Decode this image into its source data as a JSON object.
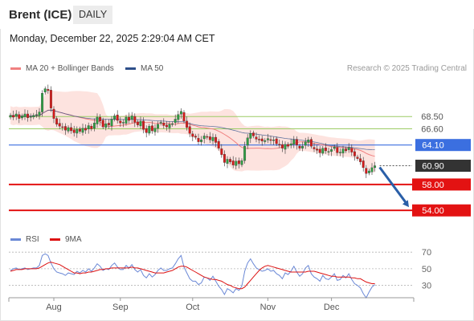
{
  "header": {
    "title": "Brent (ICE)",
    "timeframe": "DAILY",
    "timestamp": "Monday, December 22, 2025 2:29:04 AM CET"
  },
  "legend": {
    "ma20_label": "MA 20 + Bollinger Bands",
    "ma50_label": "MA 50",
    "rsi_label": "RSI",
    "nine_ma_label": "9MA",
    "ma20_color": "#f08080",
    "ma50_color": "#2e4f8a",
    "rsi_color": "#6a88d6",
    "nine_ma_color": "#dd1111"
  },
  "credit": "Research © 2025 Trading Central",
  "chart_data": [
    {
      "type": "candlestick",
      "months": [
        "Aug",
        "Sep",
        "Oct",
        "Nov",
        "Dec"
      ],
      "ylim": [
        50.8,
        74.6
      ],
      "levels": [
        {
          "label": "68.50",
          "value": 68.5,
          "kind": "target",
          "color": "#9ccc65"
        },
        {
          "label": "66.60",
          "value": 66.6,
          "kind": "target",
          "color": "#9ccc65"
        },
        {
          "label": "64.10",
          "value": 64.1,
          "kind": "pivot",
          "color": "#3b6fe0"
        },
        {
          "label": "60.90",
          "value": 60.9,
          "kind": "last",
          "color": "#333333"
        },
        {
          "label": "58.00",
          "value": 58.0,
          "kind": "support",
          "color": "#e31212"
        },
        {
          "label": "54.00",
          "value": 54.0,
          "kind": "support",
          "color": "#e31212"
        }
      ],
      "close": [
        68.7,
        68.4,
        68.9,
        68.2,
        68.6,
        68.9,
        68.3,
        68.5,
        68.7,
        68.8,
        69.2,
        72.1,
        72.8,
        72.5,
        69.8,
        68.2,
        67.3,
        67.0,
        66.9,
        66.4,
        66.8,
        66.3,
        66.0,
        66.5,
        66.2,
        66.7,
        66.4,
        67.1,
        66.6,
        67.5,
        68.4,
        67.8,
        66.9,
        67.4,
        67.2,
        68.1,
        68.6,
        67.9,
        67.5,
        67.6,
        68.4,
        67.9,
        68.6,
        67.6,
        67.2,
        67.8,
        66.5,
        66.0,
        67.0,
        66.3,
        66.7,
        67.3,
        67.6,
        67.1,
        66.9,
        67.3,
        67.4,
        68.1,
        68.8,
        69.3,
        67.8,
        66.8,
        65.9,
        65.4,
        65.3,
        64.6,
        64.9,
        65.5,
        65.3,
        64.9,
        65.3,
        64.5,
        63.6,
        62.6,
        61.4,
        61.9,
        61.5,
        61.0,
        61.6,
        61.2,
        61.7,
        63.9,
        65.2,
        65.9,
        65.5,
        65.0,
        64.9,
        64.7,
        64.8,
        65.1,
        64.8,
        64.9,
        64.3,
        64.1,
        63.6,
        64.2,
        63.9,
        64.3,
        64.9,
        64.1,
        63.6,
        63.9,
        64.6,
        64.9,
        63.9,
        63.5,
        63.3,
        62.9,
        63.6,
        63.2,
        63.1,
        63.4,
        63.8,
        62.9,
        63.0,
        63.5,
        63.2,
        63.7,
        63.0,
        62.4,
        62.0,
        61.5,
        60.6,
        59.7,
        60.1,
        60.6,
        60.9
      ],
      "rsi": [
        48,
        50,
        51,
        49,
        50,
        51,
        49,
        50,
        51,
        51,
        54,
        66,
        68,
        66,
        57,
        50,
        46,
        45,
        44,
        42,
        45,
        44,
        43,
        47,
        45,
        48,
        46,
        50,
        47,
        51,
        56,
        53,
        48,
        50,
        49,
        54,
        57,
        52,
        49,
        49,
        54,
        51,
        55,
        49,
        46,
        49,
        42,
        39,
        44,
        40,
        43,
        48,
        51,
        48,
        48,
        50,
        51,
        56,
        62,
        66,
        52,
        45,
        38,
        35,
        35,
        31,
        33,
        40,
        39,
        36,
        41,
        35,
        29,
        25,
        19,
        26,
        24,
        21,
        26,
        24,
        29,
        47,
        57,
        62,
        56,
        51,
        49,
        47,
        48,
        50,
        47,
        48,
        44,
        42,
        38,
        45,
        43,
        47,
        53,
        46,
        41,
        44,
        51,
        54,
        44,
        40,
        38,
        35,
        42,
        38,
        37,
        40,
        44,
        36,
        37,
        42,
        39,
        44,
        37,
        32,
        30,
        27,
        20,
        15,
        22,
        28,
        31
      ],
      "nine_ma": [
        47,
        48,
        49,
        49,
        49,
        50,
        50,
        50,
        50,
        50,
        51,
        53,
        55,
        57,
        58,
        57,
        56,
        55,
        53,
        51,
        49,
        47,
        45,
        45,
        44,
        45,
        45,
        46,
        46,
        47,
        48,
        49,
        49,
        50,
        50,
        51,
        51,
        51,
        51,
        51,
        51,
        51,
        52,
        51,
        51,
        50,
        49,
        48,
        47,
        46,
        45,
        45,
        45,
        45,
        46,
        47,
        48,
        50,
        52,
        53,
        53,
        52,
        50,
        48,
        46,
        44,
        42,
        40,
        39,
        38,
        37,
        37,
        36,
        35,
        33,
        31,
        30,
        28,
        27,
        26,
        26,
        28,
        32,
        36,
        40,
        44,
        48,
        51,
        53,
        54,
        53,
        52,
        51,
        50,
        49,
        48,
        47,
        46,
        46,
        46,
        46,
        46,
        46,
        47,
        47,
        47,
        46,
        45,
        44,
        43,
        42,
        41,
        41,
        40,
        40,
        40,
        40,
        40,
        39,
        39,
        38,
        38,
        36,
        34,
        33,
        32,
        32
      ]
    },
    {
      "type": "line",
      "ylim": [
        18,
        76
      ],
      "yticks": [
        30,
        50,
        70
      ]
    }
  ]
}
